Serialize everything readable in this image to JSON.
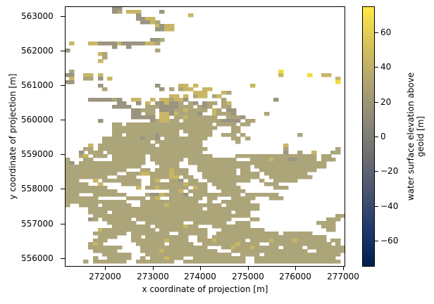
{
  "chart_data": {
    "type": "heatmap",
    "title": "",
    "xlabel": "x coordinate of projection [m]",
    "ylabel": "y coordinate of projection [m]",
    "colorbar_label": "water surface elevation above geoid [m]",
    "colorbar_label_lines": [
      "water surface elevation above",
      "geoid [m]"
    ],
    "colormap": "cividis",
    "xlim": [
      271150,
      277050
    ],
    "ylim": [
      555750,
      563280
    ],
    "clim": [
      -75,
      75
    ],
    "xticks": [
      272000,
      273000,
      274000,
      275000,
      276000,
      277000
    ],
    "xtick_labels": [
      "272000",
      "273000",
      "274000",
      "275000",
      "276000",
      "277000"
    ],
    "yticks": [
      556000,
      557000,
      558000,
      559000,
      560000,
      561000,
      562000,
      563000
    ],
    "ytick_labels": [
      "556000",
      "557000",
      "558000",
      "559000",
      "560000",
      "561000",
      "562000",
      "563000"
    ],
    "cbar_ticks": [
      60,
      40,
      20,
      0,
      -20,
      -40,
      -60
    ],
    "cbar_tick_labels": [
      "60",
      "40",
      "20",
      "0",
      "−20",
      "−40",
      "−60"
    ],
    "grid": false,
    "cell_size_m": 100,
    "value_legend": {
      ".": null,
      "e": 8,
      "b": 15,
      "a": 28,
      "c": 42,
      "d": 62
    },
    "colors": {
      "e": "#8c887c",
      "b": "#9a9480",
      "a": "#ada57a",
      "c": "#c8b664",
      "d": "#f2dc3c"
    },
    "colorbar_stops": [
      "#00204c",
      "#1f3a6e",
      "#4a5470",
      "#6f6f73",
      "#8e8a78",
      "#b1a570",
      "#d8c25a",
      "#ffe945"
    ],
    "raster_rows": [
      "..........bb...........................................",
      "..........ba.ccc....b..........................",
      "...............b..........c............................",
      "...............bbcc.......................................",
      "................bbca......................................",
      "...................cbcc...................................",
      "...................bbcc...................................",
      "..........................................................",
      "..........................................................",
      "..................bba.....................................",
      ".c...ccbbbbcbbbbbcca......................................",
      "..........b..b............................................",
      "b..................a......................................",
      ".......ca.................................................",
      "........a.................................................",
      ".......c.................................................",
      "..........................................................",
      "..........................................................",
      ".a...........................................d............",
      "bb..cc.c.....................................c.....d..cc..",
      ".c..aa.b.c...............................................c",
      "bb.......................................................d",
      ".......b...........b....cc.c...........c.................",
      "........a...........b.a.acc..cc..........................",
      "...........................ccc...ca.......................",
      "......................cc.c.acc.ac.........................",
      ".....bbbbbab..cc..c.ccaccb.......a..........b.............",
      "...........bb..b.c.bbcbba.ab.baa.ac.........................",
      "..........bbbb...aaabbbbaaa.aba..aa.......................",
      "..............bbaaa.bbbaacaaaa.ca.bb......................",
      "..............bb.aa.ccbcaaaab..caaab......a...............",
      "..............bbbbb.cc.aacaaaaaa..aaab.....................",
      ".......b..........baccaa.aaaaaaaabbbb.aa..................",
      "..........aa.aaaaaaaaaaaaaaaaaa.aaaa.aa...................",
      "..........aaaaaaaaaaaaaaaaaaaaaa...aa.....................",
      "..........aaaaaaaaaaaaaa.aaaaaa....aa.....................",
      "..........aa.aaaaaabaaaa..aaaaa..aaa.a...........a.........",
      "........aaaaaaaabaab.aaaaaaaaa.....aa.a...................",
      "........aaaaaaaaaa.aaaaaaaaaa.......a.....................",
      ".....c.aaaaaaaaaaaa.aaaaaaaaa.................c...........",
      "....aa.aaaaaaaaaaaaaaaaaaaaaaa................a..........a",
      "...b.aaa.aaaaaaaaaaaaaaaaaaaa.................b..a..c...aa",
      "...ac.aaa.aaaaaaa.aaaaaaaaaaaaa.....aaaaaaaaaaaaaaaaa.aa",
      "a...aa....aaaaaaa.aaaaaaa.aaaaaaaaaa...aaaacaaabbaaaa.aaa",
      "ab.aaaaaaaaaaaaaa..aaaaa..aaaaaaaaaaaaaaaaaaaaaaaaaaaaa",
      "aaaaaaaaaaaaaaaa....aaaa....aaaaaaaaaaa.aaaaaaaaaaaaaaa",
      "aaaaaaaaaaaaa...aa.aaacaaa..aaaaaaaa.aa..aaaaaaaaaaaa..",
      "aaaaaaaaaaa..aaaccaaaacaaa...aaaaaaa.aaaa.aaaaaaaaa....",
      "aaaaaaaaa..aaaa...aaaacc.aa..aaaaaaaaaaaa..aaaaaaaaa....",
      "aaa...c.aaaaaaaa..ac..aab.aa..aaaaaaaaa..a..aaaaa.......",
      "aaaaa..c....aaaa..aaaaaaacaaaa.aaaaa......aaa..........",
      "aaaaaaaaa......c.aacaaaaaa.caa..aaaaa.......aaa.........",
      "aaaaaaaaaaa...........aac.aaaa...aaaaa....................",
      "aaa...aaaaaaa....abbcaaaab.aaaaaaaaaa.aaaaaaa..............",
      "aaaaaaa......aaaa.ac..aaaaaaa.aa...aaaaa...aaa..............",
      "aaaaaaaaaaaaa...aaaaaaaaaaaa..a..aaaaaa......................",
      "a..aaaa.aaaaaa..aaaaacaaaaaaaaaaa.aaaaaaa.....................",
      ".....aaaaaaaaaaaaaaaaaaaaaaaa.aaaaaaaaaaa.....................",
      ".....aaaa.aaaaaaaaaaaaaaaaaaaaaaaaa.aaa....................aa",
      "......aaaaaaaaaaaaaaaaaaaaaaaaaaaaaaaaa..................aaa",
      ".....ba.aaaaaa.aaaaaaaaaaaaaaaaaaaa....aa..............aaa",
      ".........aaaaaa..aaaaaaaa..aaaaaaa..aaa..............aaaa",
      "..........aaaaaaaa.aaaaaacaa...aaaaaaaa...............aaa",
      ".......caaaaaaaaaaa.aaaaaaaaaa...aaaaaaaaa.............aa",
      "......aaaaaaa.aaaaaaaa..aaaaaa..aaaaaaaaaaaaa.aaaaaa.....",
      ".......aaaa...aa.aaaaaaaaa..aa.aaaaaaaaaaaaaaaaaaaaaaaa...",
      "......aaa.....aaaaaaacaaaa..aaacaaaaaa.aaaacaaaacaaaaaa.aa",
      ".....aca.......aaaaaa.aaaaa..aaaaaaacaaaa..aaaaaaaaaaaaa.a",
      ".....aaaaaaa....aaaaaaaaaaaaaa...aacaaacaaaaa.aaaa.aaaaaaaa",
      "......aaaaa.....aaaacaaaaaaaaaaa...aaaaaaaaaaaaaaaa..aaaaaa",
      "........aaaaaa...aaaaaaaaaaaaaaaaaa..aaaa.aaaaaaaaaaaaaaaa",
      "......a..aaaaa..a.aaacaaa..aaaaaaaaaaa..aaaaaaaaaaaaaaaaa",
      "....a.aaaaaaa..aaaaaaaa..aaaaaaaaaaaaa..aaaaaaaaaaaaaaaaaa",
      "............................................................"
    ]
  }
}
